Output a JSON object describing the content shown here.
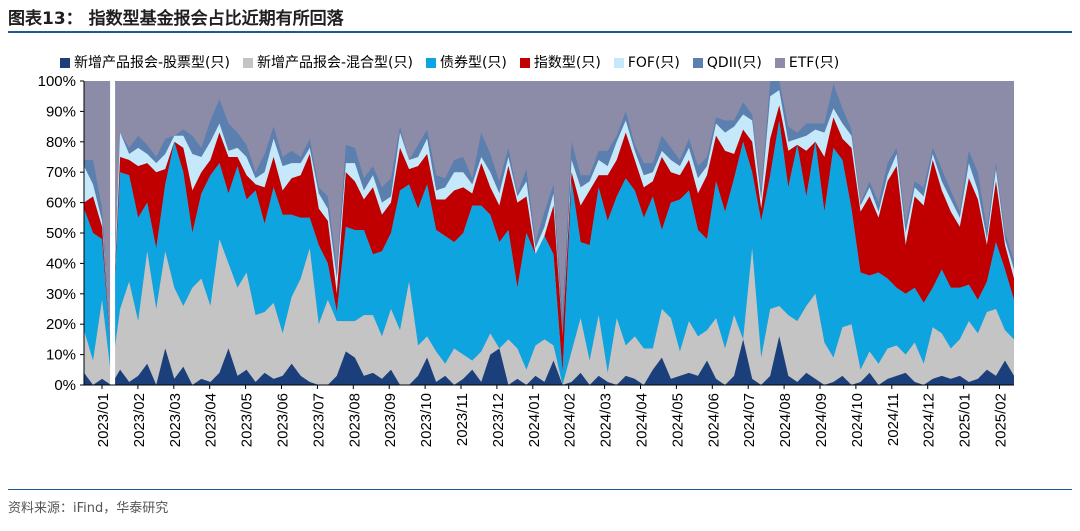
{
  "figure": {
    "title": "图表13：  指数型基金报会占比近期有所回落",
    "source": "资料来源：iFind，华泰研究"
  },
  "colors": {
    "title_rule": "#1d5a9c",
    "grid_bg": "#ffffff"
  },
  "chart_data": {
    "type": "area",
    "stacked": true,
    "percent": true,
    "title": "",
    "xlabel": "",
    "ylabel": "",
    "ylim": [
      0,
      100
    ],
    "yticks": [
      "0%",
      "10%",
      "20%",
      "30%",
      "40%",
      "50%",
      "60%",
      "70%",
      "80%",
      "90%",
      "100%"
    ],
    "legend_position": "top",
    "x_ticks": [
      "2023/01",
      "2023/02",
      "2023/03",
      "2023/04",
      "2023/05",
      "2023/06",
      "2023/07",
      "2023/08",
      "2023/09",
      "2023/10",
      "2023/11",
      "2023/12",
      "2024/01",
      "2024/02",
      "2024/03",
      "2024/04",
      "2024/05",
      "2024/06",
      "2024/07",
      "2024/08",
      "2024/09",
      "2024/10",
      "2024/11",
      "2024/12",
      "2025/01",
      "2025/02"
    ],
    "x": [
      "2023/01-1",
      "2023/01-2",
      "2023/01-3",
      "2023/01-4",
      "2023/02-1",
      "2023/02-2",
      "2023/02-3",
      "2023/02-4",
      "2023/03-1",
      "2023/03-2",
      "2023/03-3",
      "2023/03-4",
      "2023/04-1",
      "2023/04-2",
      "2023/04-3",
      "2023/04-4",
      "2023/05-1",
      "2023/05-2",
      "2023/05-3",
      "2023/05-4",
      "2023/06-1",
      "2023/06-2",
      "2023/06-3",
      "2023/06-4",
      "2023/07-1",
      "2023/07-2",
      "2023/07-3",
      "2023/07-4",
      "2023/08-1",
      "2023/08-2",
      "2023/08-3",
      "2023/08-4",
      "2023/09-1",
      "2023/09-2",
      "2023/09-3",
      "2023/09-4",
      "2023/10-1",
      "2023/10-2",
      "2023/10-3",
      "2023/10-4",
      "2023/11-1",
      "2023/11-2",
      "2023/11-3",
      "2023/11-4",
      "2023/12-1",
      "2023/12-2",
      "2023/12-3",
      "2023/12-4",
      "2024/01-1",
      "2024/01-2",
      "2024/01-3",
      "2024/01-4",
      "2024/02-1",
      "2024/02-2",
      "2024/02-3",
      "2024/02-4",
      "2024/03-1",
      "2024/03-2",
      "2024/03-3",
      "2024/03-4",
      "2024/04-1",
      "2024/04-2",
      "2024/04-3",
      "2024/04-4",
      "2024/05-1",
      "2024/05-2",
      "2024/05-3",
      "2024/05-4",
      "2024/06-1",
      "2024/06-2",
      "2024/06-3",
      "2024/06-4",
      "2024/07-1",
      "2024/07-2",
      "2024/07-3",
      "2024/07-4",
      "2024/08-1",
      "2024/08-2",
      "2024/08-3",
      "2024/08-4",
      "2024/09-1",
      "2024/09-2",
      "2024/09-3",
      "2024/09-4",
      "2024/10-1",
      "2024/10-2",
      "2024/10-3",
      "2024/10-4",
      "2024/11-1",
      "2024/11-2",
      "2024/11-3",
      "2024/11-4",
      "2024/12-1",
      "2024/12-2",
      "2024/12-3",
      "2024/12-4",
      "2025/01-1",
      "2025/01-2",
      "2025/01-3",
      "2025/01-4",
      "2025/02-1",
      "2025/02-2",
      "2025/02-3",
      "2025/02-4"
    ],
    "series": [
      {
        "name": "新增产品报会-股票型(只)",
        "color": "#1b3f7a",
        "values": [
          4,
          0,
          2,
          0,
          5,
          1,
          3,
          7,
          0,
          12,
          2,
          6,
          0,
          2,
          1,
          4,
          12,
          3,
          5,
          1,
          4,
          2,
          3,
          7,
          3,
          1,
          0,
          0,
          3,
          11,
          9,
          3,
          4,
          2,
          5,
          0,
          0,
          3,
          9,
          1,
          3,
          0,
          2,
          5,
          1,
          10,
          12,
          0,
          2,
          0,
          3,
          1,
          8,
          0,
          1,
          4,
          0,
          3,
          1,
          0,
          3,
          2,
          0,
          5,
          9,
          2,
          3,
          4,
          3,
          8,
          2,
          0,
          3,
          15,
          2,
          0,
          3,
          16,
          3,
          1,
          4,
          2,
          0,
          1,
          3,
          0,
          1,
          4,
          0,
          2,
          3,
          4,
          1,
          0,
          2,
          3,
          2,
          3,
          1,
          2,
          5,
          3,
          8,
          3
        ]
      },
      {
        "name": "新增产品报会-混合型(只)",
        "color": "#c4c4c4",
        "values": [
          14,
          8,
          26,
          3,
          20,
          33,
          18,
          37,
          25,
          32,
          30,
          20,
          32,
          33,
          25,
          44,
          28,
          29,
          32,
          22,
          20,
          25,
          14,
          22,
          32,
          44,
          20,
          28,
          18,
          10,
          12,
          20,
          19,
          14,
          20,
          18,
          34,
          10,
          7,
          10,
          4,
          12,
          8,
          3,
          10,
          7,
          0,
          15,
          10,
          5,
          10,
          14,
          5,
          0,
          10,
          18,
          8,
          20,
          3,
          22,
          10,
          14,
          12,
          7,
          16,
          20,
          8,
          17,
          13,
          10,
          20,
          12,
          20,
          0,
          43,
          9,
          22,
          10,
          20,
          20,
          22,
          28,
          14,
          8,
          16,
          20,
          4,
          7,
          7,
          10,
          10,
          6,
          13,
          7,
          17,
          14,
          10,
          12,
          20,
          15,
          19,
          22,
          10,
          12
        ]
      },
      {
        "name": "债券型(只)",
        "color": "#0ea4e0",
        "values": [
          40,
          42,
          20,
          6,
          45,
          35,
          34,
          16,
          20,
          22,
          48,
          44,
          18,
          28,
          43,
          25,
          23,
          40,
          24,
          41,
          29,
          38,
          39,
          27,
          20,
          10,
          26,
          12,
          3,
          31,
          30,
          28,
          20,
          28,
          25,
          46,
          32,
          45,
          50,
          40,
          42,
          35,
          40,
          51,
          48,
          39,
          35,
          36,
          20,
          45,
          30,
          34,
          30,
          4,
          56,
          25,
          38,
          42,
          50,
          40,
          55,
          48,
          43,
          50,
          26,
          38,
          50,
          43,
          35,
          30,
          45,
          45,
          45,
          65,
          25,
          45,
          44,
          61,
          42,
          58,
          36,
          50,
          43,
          69,
          55,
          38,
          32,
          25,
          30,
          23,
          19,
          20,
          18,
          20,
          13,
          21,
          20,
          17,
          12,
          11,
          10,
          22,
          20,
          13
        ]
      },
      {
        "name": "指数型(只)",
        "color": "#c00000",
        "values": [
          2,
          12,
          4,
          0,
          5,
          5,
          17,
          13,
          25,
          5,
          0,
          8,
          14,
          7,
          5,
          10,
          12,
          3,
          8,
          2,
          12,
          10,
          8,
          12,
          14,
          21,
          12,
          14,
          6,
          18,
          16,
          10,
          22,
          12,
          10,
          14,
          5,
          14,
          10,
          10,
          12,
          17,
          15,
          4,
          14,
          9,
          12,
          21,
          28,
          12,
          0,
          0,
          16,
          12,
          3,
          12,
          18,
          4,
          15,
          12,
          15,
          10,
          10,
          5,
          24,
          10,
          8,
          10,
          12,
          21,
          15,
          20,
          8,
          4,
          10,
          4,
          12,
          5,
          12,
          0,
          15,
          0,
          18,
          10,
          7,
          20,
          20,
          26,
          18,
          32,
          40,
          16,
          30,
          32,
          42,
          26,
          25,
          20,
          35,
          33,
          12,
          20,
          8,
          7
        ]
      },
      {
        "name": "FOF(只)",
        "color": "#c5e9fa",
        "values": [
          12,
          4,
          2,
          0,
          8,
          2,
          6,
          3,
          3,
          5,
          2,
          4,
          12,
          5,
          6,
          3,
          2,
          3,
          6,
          2,
          5,
          6,
          8,
          5,
          4,
          2,
          5,
          4,
          5,
          3,
          6,
          3,
          4,
          4,
          2,
          5,
          3,
          3,
          5,
          3,
          4,
          6,
          5,
          3,
          2,
          5,
          4,
          3,
          2,
          5,
          2,
          3,
          4,
          0,
          4,
          6,
          3,
          5,
          3,
          6,
          4,
          3,
          4,
          3,
          2,
          4,
          3,
          4,
          5,
          3,
          4,
          6,
          9,
          5,
          7,
          3,
          14,
          5,
          3,
          2,
          5,
          4,
          8,
          3,
          5,
          4,
          2,
          3,
          2,
          2,
          4,
          4,
          3,
          3,
          2,
          3,
          4,
          3,
          5,
          3,
          2,
          4,
          2,
          3
        ]
      },
      {
        "name": "QDII(只)",
        "color": "#5b7fae",
        "values": [
          2,
          8,
          4,
          1,
          0,
          2,
          4,
          3,
          2,
          5,
          0,
          2,
          6,
          3,
          7,
          8,
          9,
          5,
          4,
          2,
          6,
          4,
          3,
          4,
          2,
          3,
          2,
          4,
          3,
          6,
          5,
          4,
          3,
          5,
          6,
          2,
          0,
          4,
          3,
          5,
          3,
          4,
          5,
          2,
          8,
          6,
          4,
          3,
          1,
          4,
          2,
          5,
          3,
          7,
          6,
          4,
          2,
          3,
          5,
          2,
          3,
          2,
          4,
          3,
          5,
          4,
          2,
          3,
          4,
          3,
          2,
          4,
          2,
          4,
          2,
          3,
          5,
          3,
          5,
          2,
          4,
          2,
          3,
          8,
          5,
          2,
          1,
          2,
          3,
          4,
          2,
          3,
          2,
          3,
          2,
          4,
          3,
          2,
          4,
          6,
          3,
          2,
          2,
          3
        ]
      }
    ],
    "etf_series": {
      "name": "ETF(只)",
      "color": "#8c8ba8"
    }
  }
}
